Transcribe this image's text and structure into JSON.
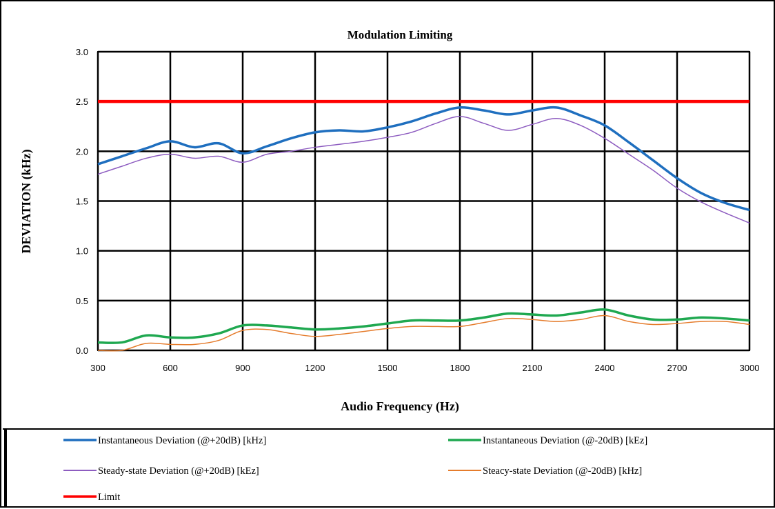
{
  "chart_data": {
    "type": "line",
    "title": "Modulation Limiting",
    "xlabel": "Audio Frequency (Hz)",
    "ylabel": "DEVIATION (kHz)",
    "xlim": [
      300,
      3000
    ],
    "ylim": [
      0,
      3.0
    ],
    "x_ticks": [
      "300",
      "600",
      "900",
      "1200",
      "1500",
      "1800",
      "2100",
      "2400",
      "2700",
      "3000"
    ],
    "y_ticks": [
      "0.0",
      "0.5",
      "1.0",
      "1.5",
      "2.0",
      "2.5",
      "3.0"
    ],
    "grid": true,
    "legend_position": "bottom",
    "series": [
      {
        "name": "Instantaneous Deviation (@+20dB) [kHz]",
        "color": "#1f6fbf",
        "x": [
          300,
          400,
          500,
          600,
          700,
          800,
          900,
          1000,
          1100,
          1200,
          1300,
          1400,
          1500,
          1600,
          1700,
          1800,
          1900,
          2000,
          2100,
          2200,
          2300,
          2400,
          2500,
          2600,
          2700,
          2800,
          2900,
          3000
        ],
        "values": [
          1.87,
          1.95,
          2.03,
          2.1,
          2.04,
          2.08,
          1.98,
          2.05,
          2.13,
          2.19,
          2.21,
          2.2,
          2.24,
          2.3,
          2.38,
          2.44,
          2.41,
          2.37,
          2.41,
          2.44,
          2.36,
          2.26,
          2.09,
          1.91,
          1.73,
          1.58,
          1.48,
          1.41
        ]
      },
      {
        "name": "Instantaneous Deviation (@-20dB) [kEz]",
        "color": "#1fa850",
        "x": [
          300,
          400,
          500,
          600,
          700,
          800,
          900,
          1000,
          1100,
          1200,
          1300,
          1400,
          1500,
          1600,
          1700,
          1800,
          1900,
          2000,
          2100,
          2200,
          2300,
          2400,
          2500,
          2600,
          2700,
          2800,
          2900,
          3000
        ],
        "values": [
          0.08,
          0.08,
          0.15,
          0.13,
          0.13,
          0.17,
          0.25,
          0.25,
          0.23,
          0.21,
          0.22,
          0.24,
          0.27,
          0.3,
          0.3,
          0.3,
          0.33,
          0.37,
          0.36,
          0.35,
          0.38,
          0.41,
          0.35,
          0.31,
          0.31,
          0.33,
          0.32,
          0.3
        ]
      },
      {
        "name": "Steady-state Deviation (@+20dB) [kEz]",
        "color": "#8d5cc0",
        "x": [
          300,
          400,
          500,
          600,
          700,
          800,
          900,
          1000,
          1100,
          1200,
          1300,
          1400,
          1500,
          1600,
          1700,
          1800,
          1900,
          2000,
          2100,
          2200,
          2300,
          2400,
          2500,
          2600,
          2700,
          2800,
          2900,
          3000
        ],
        "values": [
          1.77,
          1.85,
          1.93,
          1.97,
          1.93,
          1.95,
          1.89,
          1.97,
          2.0,
          2.04,
          2.07,
          2.1,
          2.14,
          2.19,
          2.28,
          2.35,
          2.28,
          2.21,
          2.27,
          2.33,
          2.26,
          2.13,
          1.97,
          1.81,
          1.63,
          1.49,
          1.38,
          1.28
        ]
      },
      {
        "name": "Steacy-state Deviation (@-20dB) [kHz]",
        "color": "#e57c2c",
        "x": [
          300,
          400,
          500,
          600,
          700,
          800,
          900,
          1000,
          1100,
          1200,
          1300,
          1400,
          1500,
          1600,
          1700,
          1800,
          1900,
          2000,
          2100,
          2200,
          2300,
          2400,
          2500,
          2600,
          2700,
          2800,
          2900,
          3000
        ],
        "values": [
          0.0,
          0.0,
          0.07,
          0.06,
          0.06,
          0.1,
          0.2,
          0.21,
          0.17,
          0.14,
          0.16,
          0.19,
          0.22,
          0.24,
          0.24,
          0.24,
          0.28,
          0.32,
          0.31,
          0.29,
          0.31,
          0.35,
          0.29,
          0.26,
          0.27,
          0.29,
          0.29,
          0.26
        ]
      },
      {
        "name": "Limit",
        "color": "#ff0000",
        "x": [
          300,
          3000
        ],
        "values": [
          2.5,
          2.5
        ]
      }
    ]
  }
}
